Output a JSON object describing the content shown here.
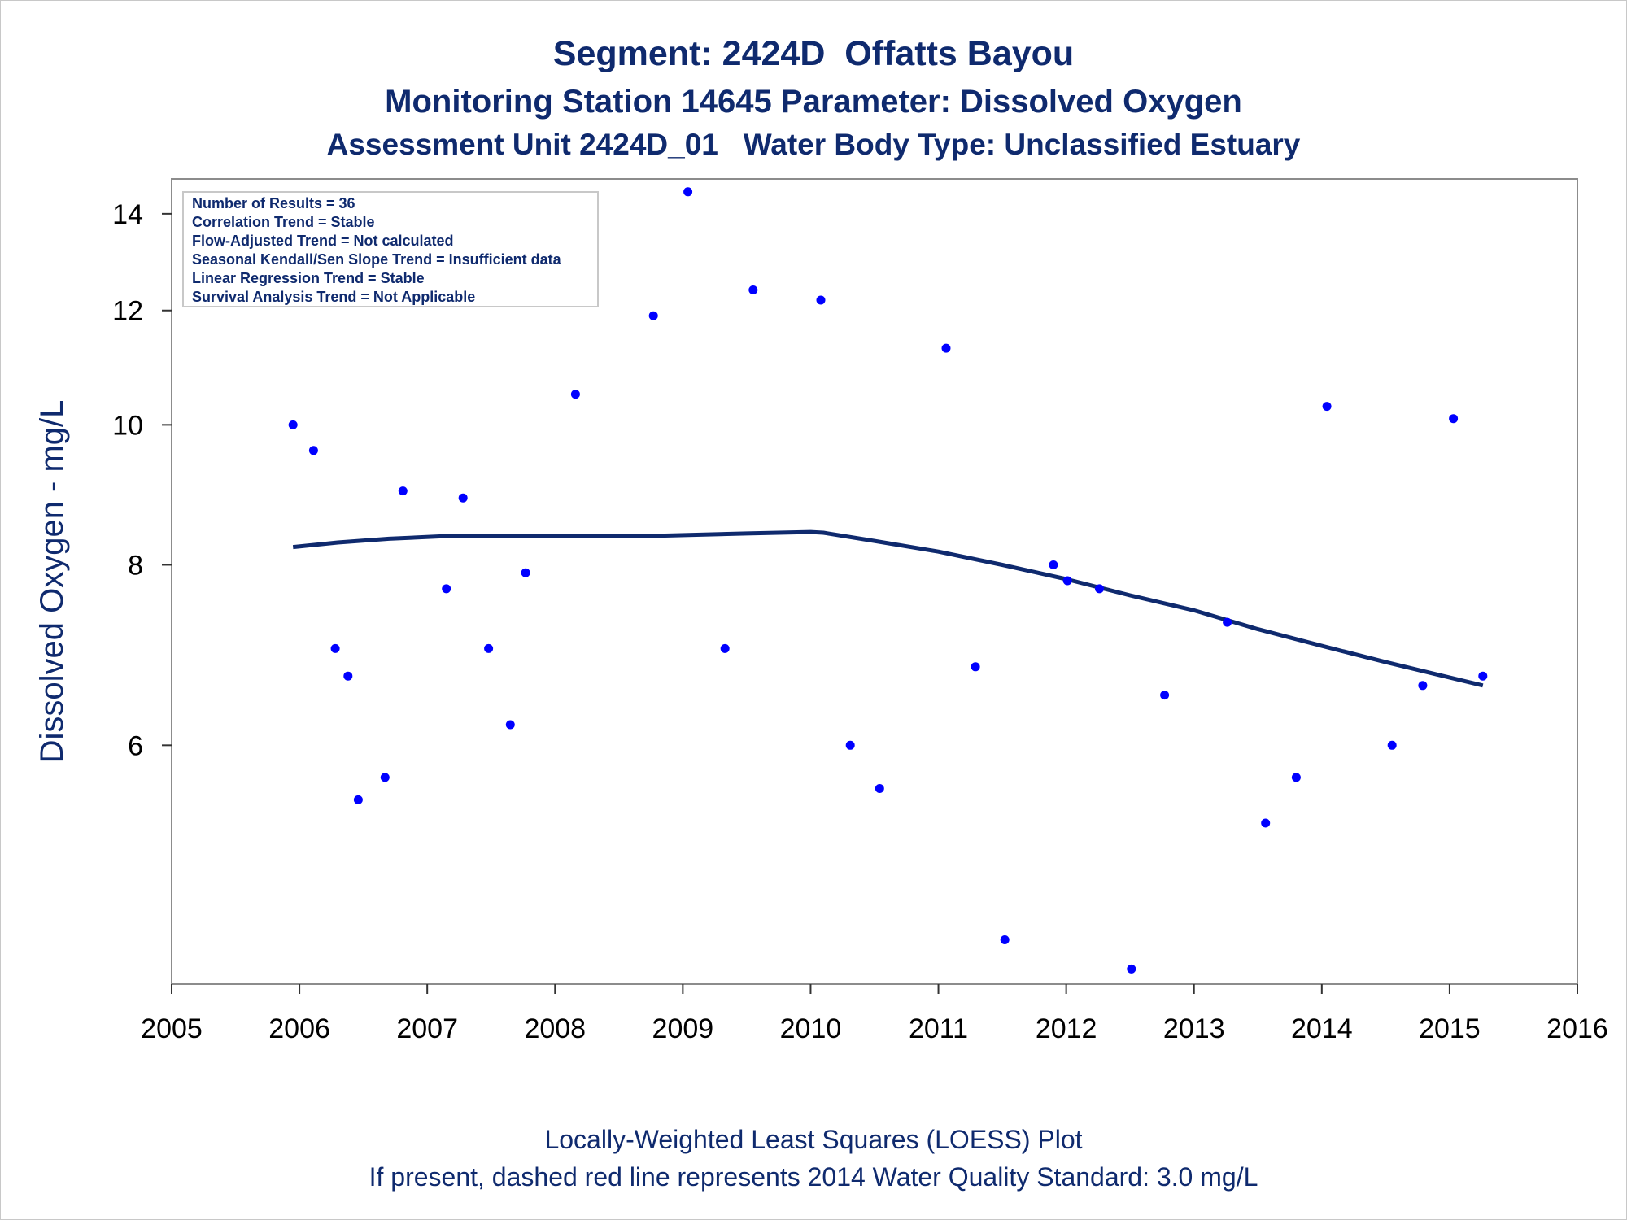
{
  "chart_data": {
    "type": "scatter",
    "title": "Segment: 2424D  Offatts Bayou",
    "subtitle": "Monitoring Station 14645 Parameter: Dissolved Oxygen",
    "subtitle2": "Assessment Unit 2424D_01   Water Body Type: Unclassified Estuary",
    "ylabel": "Dissolved Oxygen - mg/L",
    "xlabel": "",
    "xlim": [
      2005,
      2016
    ],
    "ylim": [
      4.1,
      14.8
    ],
    "y_scale": "log",
    "x_ticks": [
      "2005",
      "2006",
      "2007",
      "2008",
      "2009",
      "2010",
      "2011",
      "2012",
      "2013",
      "2014",
      "2015",
      "2016"
    ],
    "y_ticks": [
      "6",
      "8",
      "10",
      "12",
      "14"
    ],
    "legend_position": "top-left",
    "legend_lines": [
      "Number of Results = 36",
      "Correlation Trend = Stable",
      "Flow-Adjusted Trend = Not calculated",
      "Seasonal Kendall/Sen Slope Trend = Insufficient data",
      "Linear Regression Trend = Stable",
      "Survival Analysis Trend = Not Applicable"
    ],
    "footnote1": "Locally-Weighted Least Squares (LOESS) Plot",
    "footnote2": "If present, dashed red line represents 2014 Water Quality Standard: 3.0 mg/L",
    "series": [
      {
        "type": "scatter",
        "color": "#0000ff",
        "points": [
          {
            "x": 2005.95,
            "y": 10.0
          },
          {
            "x": 2006.11,
            "y": 9.6
          },
          {
            "x": 2006.28,
            "y": 7.0
          },
          {
            "x": 2006.38,
            "y": 6.7
          },
          {
            "x": 2006.46,
            "y": 5.5
          },
          {
            "x": 2006.67,
            "y": 5.7
          },
          {
            "x": 2006.81,
            "y": 9.0
          },
          {
            "x": 2007.15,
            "y": 7.7
          },
          {
            "x": 2007.28,
            "y": 8.9
          },
          {
            "x": 2007.48,
            "y": 7.0
          },
          {
            "x": 2007.65,
            "y": 6.2
          },
          {
            "x": 2007.77,
            "y": 7.9
          },
          {
            "x": 2008.16,
            "y": 10.5
          },
          {
            "x": 2008.77,
            "y": 11.9
          },
          {
            "x": 2009.04,
            "y": 14.5
          },
          {
            "x": 2009.33,
            "y": 7.0
          },
          {
            "x": 2009.55,
            "y": 12.4
          },
          {
            "x": 2010.08,
            "y": 12.2
          },
          {
            "x": 2010.31,
            "y": 6.0
          },
          {
            "x": 2010.54,
            "y": 5.6
          },
          {
            "x": 2011.06,
            "y": 11.3
          },
          {
            "x": 2011.29,
            "y": 6.8
          },
          {
            "x": 2011.52,
            "y": 4.4
          },
          {
            "x": 2011.9,
            "y": 8.0
          },
          {
            "x": 2012.01,
            "y": 7.8
          },
          {
            "x": 2012.26,
            "y": 7.7
          },
          {
            "x": 2012.51,
            "y": 4.2
          },
          {
            "x": 2012.77,
            "y": 6.5
          },
          {
            "x": 2013.26,
            "y": 7.3
          },
          {
            "x": 2013.56,
            "y": 5.3
          },
          {
            "x": 2013.8,
            "y": 5.7
          },
          {
            "x": 2014.04,
            "y": 10.3
          },
          {
            "x": 2014.55,
            "y": 6.0
          },
          {
            "x": 2014.79,
            "y": 6.6
          },
          {
            "x": 2015.03,
            "y": 10.1
          },
          {
            "x": 2015.26,
            "y": 6.7
          }
        ]
      },
      {
        "type": "line",
        "color": "#0f2a6e",
        "points": [
          {
            "x": 2005.95,
            "y": 8.23
          },
          {
            "x": 2006.3,
            "y": 8.29
          },
          {
            "x": 2006.7,
            "y": 8.34
          },
          {
            "x": 2007.2,
            "y": 8.38
          },
          {
            "x": 2008.0,
            "y": 8.38
          },
          {
            "x": 2008.8,
            "y": 8.38
          },
          {
            "x": 2009.5,
            "y": 8.41
          },
          {
            "x": 2010.0,
            "y": 8.43
          },
          {
            "x": 2010.1,
            "y": 8.42
          },
          {
            "x": 2010.5,
            "y": 8.31
          },
          {
            "x": 2011.0,
            "y": 8.17
          },
          {
            "x": 2011.5,
            "y": 8.0
          },
          {
            "x": 2012.0,
            "y": 7.82
          },
          {
            "x": 2012.5,
            "y": 7.62
          },
          {
            "x": 2013.0,
            "y": 7.44
          },
          {
            "x": 2013.5,
            "y": 7.22
          },
          {
            "x": 2014.0,
            "y": 7.03
          },
          {
            "x": 2014.5,
            "y": 6.85
          },
          {
            "x": 2015.26,
            "y": 6.6
          }
        ]
      }
    ]
  }
}
